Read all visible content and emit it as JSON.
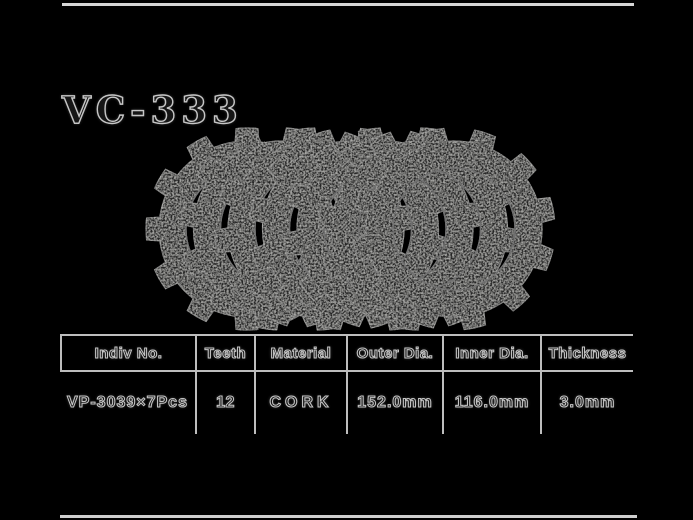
{
  "page": {
    "background": "#000000",
    "rule_color": "#d6d6d6",
    "table_line_color": "#bdbdbd",
    "text_outline_color": "#c6c6c6"
  },
  "title": "VC-333",
  "product_image": {
    "description": "fanned stack of cork friction clutch plates",
    "plate_count": 7,
    "teeth_per_plate": 12,
    "colors": {
      "body": "#262626",
      "edge": "#6a6a6a",
      "speckle": "#8c8c8c",
      "inner_rim": "#707070"
    }
  },
  "spec_table": {
    "headers": [
      "Indiv No.",
      "Teeth",
      "Material",
      "Outer Dia.",
      "Inner Dia.",
      "Thickness"
    ],
    "rows": [
      [
        "VP-3039×7Pcs",
        "12",
        "CORK",
        "152.0mm",
        "116.0mm",
        "3.0mm"
      ]
    ]
  }
}
